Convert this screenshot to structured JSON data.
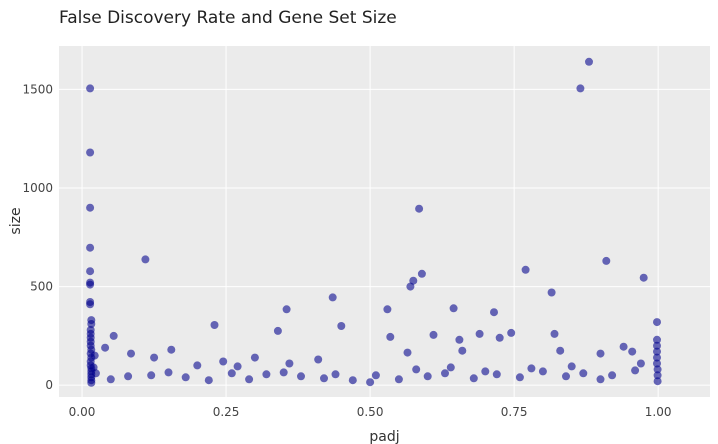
{
  "chart_data": {
    "type": "scatter",
    "title": "False Discovery Rate and Gene Set Size",
    "xlabel": "padj",
    "ylabel": "size",
    "xlim": [
      -0.04,
      1.09
    ],
    "ylim": [
      -60,
      1720
    ],
    "x_ticks": [
      0.0,
      0.25,
      0.5,
      0.75,
      1.0
    ],
    "x_tick_labels": [
      "0.00",
      "0.25",
      "0.50",
      "0.75",
      "1.00"
    ],
    "y_ticks": [
      0,
      500,
      1000,
      1500
    ],
    "y_tick_labels": [
      "0",
      "500",
      "1000",
      "1500"
    ],
    "grid": true,
    "legend": "none",
    "colors": {
      "background": "#EBEBEB",
      "grid": "#FFFFFF",
      "point": "#00008B"
    },
    "points": [
      [
        0.014,
        1505
      ],
      [
        0.014,
        1180
      ],
      [
        0.014,
        900
      ],
      [
        0.014,
        697
      ],
      [
        0.014,
        578
      ],
      [
        0.014,
        520
      ],
      [
        0.014,
        510
      ],
      [
        0.014,
        422
      ],
      [
        0.014,
        410
      ],
      [
        0.016,
        330
      ],
      [
        0.016,
        310
      ],
      [
        0.015,
        280
      ],
      [
        0.015,
        260
      ],
      [
        0.015,
        240
      ],
      [
        0.015,
        220
      ],
      [
        0.015,
        200
      ],
      [
        0.016,
        180
      ],
      [
        0.015,
        160
      ],
      [
        0.016,
        140
      ],
      [
        0.015,
        120
      ],
      [
        0.015,
        100
      ],
      [
        0.016,
        85
      ],
      [
        0.016,
        70
      ],
      [
        0.016,
        55
      ],
      [
        0.016,
        40
      ],
      [
        0.016,
        25
      ],
      [
        0.016,
        12
      ],
      [
        0.02,
        90
      ],
      [
        0.022,
        150
      ],
      [
        0.024,
        60
      ],
      [
        0.04,
        190
      ],
      [
        0.055,
        250
      ],
      [
        0.085,
        160
      ],
      [
        0.11,
        638
      ],
      [
        0.125,
        140
      ],
      [
        0.155,
        180
      ],
      [
        0.2,
        100
      ],
      [
        0.23,
        305
      ],
      [
        0.245,
        120
      ],
      [
        0.27,
        95
      ],
      [
        0.3,
        140
      ],
      [
        0.34,
        275
      ],
      [
        0.355,
        385
      ],
      [
        0.36,
        110
      ],
      [
        0.41,
        130
      ],
      [
        0.435,
        445
      ],
      [
        0.45,
        300
      ],
      [
        0.53,
        385
      ],
      [
        0.535,
        245
      ],
      [
        0.565,
        165
      ],
      [
        0.57,
        500
      ],
      [
        0.575,
        530
      ],
      [
        0.585,
        895
      ],
      [
        0.59,
        565
      ],
      [
        0.61,
        255
      ],
      [
        0.645,
        390
      ],
      [
        0.655,
        230
      ],
      [
        0.66,
        175
      ],
      [
        0.69,
        260
      ],
      [
        0.715,
        370
      ],
      [
        0.725,
        240
      ],
      [
        0.745,
        265
      ],
      [
        0.77,
        585
      ],
      [
        0.815,
        470
      ],
      [
        0.82,
        260
      ],
      [
        0.83,
        175
      ],
      [
        0.865,
        1505
      ],
      [
        0.88,
        1640
      ],
      [
        0.9,
        160
      ],
      [
        0.91,
        630
      ],
      [
        0.94,
        195
      ],
      [
        0.955,
        170
      ],
      [
        0.975,
        545
      ],
      [
        0.998,
        320
      ],
      [
        0.998,
        230
      ],
      [
        0.998,
        200
      ],
      [
        0.998,
        170
      ],
      [
        0.998,
        140
      ],
      [
        0.998,
        110
      ],
      [
        0.999,
        80
      ],
      [
        0.999,
        50
      ],
      [
        0.999,
        20
      ],
      [
        0.12,
        50
      ],
      [
        0.18,
        40
      ],
      [
        0.26,
        60
      ],
      [
        0.29,
        30
      ],
      [
        0.32,
        55
      ],
      [
        0.38,
        45
      ],
      [
        0.42,
        35
      ],
      [
        0.47,
        25
      ],
      [
        0.51,
        50
      ],
      [
        0.55,
        30
      ],
      [
        0.6,
        45
      ],
      [
        0.63,
        60
      ],
      [
        0.68,
        35
      ],
      [
        0.72,
        55
      ],
      [
        0.76,
        40
      ],
      [
        0.8,
        70
      ],
      [
        0.84,
        45
      ],
      [
        0.87,
        60
      ],
      [
        0.92,
        50
      ],
      [
        0.96,
        75
      ],
      [
        0.05,
        30
      ],
      [
        0.08,
        45
      ],
      [
        0.15,
        65
      ],
      [
        0.22,
        25
      ],
      [
        0.35,
        65
      ],
      [
        0.44,
        55
      ],
      [
        0.5,
        15
      ],
      [
        0.58,
        80
      ],
      [
        0.64,
        90
      ],
      [
        0.7,
        70
      ],
      [
        0.78,
        85
      ],
      [
        0.85,
        95
      ],
      [
        0.9,
        30
      ],
      [
        0.97,
        110
      ]
    ]
  }
}
